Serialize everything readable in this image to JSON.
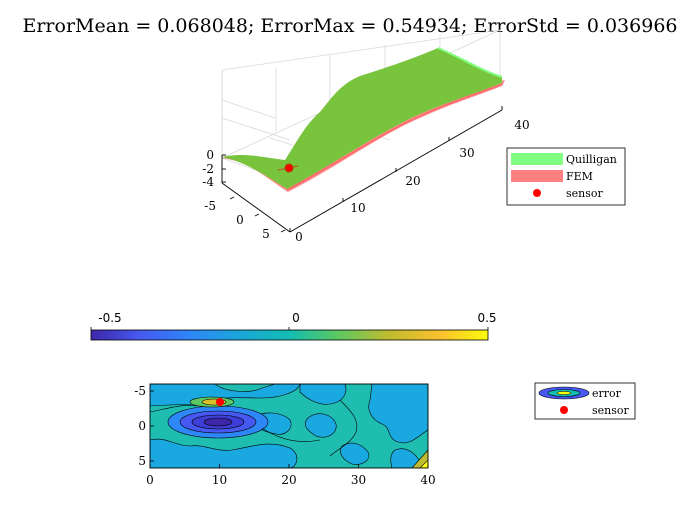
{
  "title": "ErrorMean = 0.068048; ErrorMax = 0.54934; ErrorStd = 0.036966",
  "chart_data": [
    {
      "type": "surface",
      "title": "",
      "xlabel": "",
      "ylabel": "",
      "zlabel": "",
      "x_ticks": [
        "0",
        "10",
        "20",
        "30",
        "40"
      ],
      "y_ticks": [
        "-5",
        "0",
        "5"
      ],
      "z_ticks": [
        "0",
        "-2",
        "-4"
      ],
      "xlim": [
        0,
        40
      ],
      "ylim": [
        -6,
        6
      ],
      "zlim": [
        -4,
        0
      ],
      "grid": true,
      "series": [
        {
          "name": "Quilligan",
          "color": "#80ff80"
        },
        {
          "name": "FEM",
          "color": "#ff8080"
        },
        {
          "name": "sensor",
          "color": "#ff0000",
          "marker": "circle",
          "points": [
            {
              "x": 10,
              "y": -3.5,
              "z": -1.8
            }
          ]
        }
      ],
      "legend": "right"
    },
    {
      "type": "heatmap",
      "title": "",
      "xlabel": "",
      "ylabel": "",
      "x_ticks": [
        "0",
        "10",
        "20",
        "30",
        "40"
      ],
      "y_ticks": [
        "-5",
        "0",
        "5"
      ],
      "xlim": [
        0,
        40
      ],
      "ylim": [
        -6,
        6
      ],
      "colorbar": {
        "ticks": [
          "-0.5",
          "0",
          "0.5"
        ],
        "limits": [
          -0.5,
          0.5
        ],
        "placement": "top"
      },
      "series": [
        {
          "name": "error"
        },
        {
          "name": "sensor",
          "color": "#ff0000",
          "marker": "circle",
          "points": [
            {
              "x": 10,
              "y": -3.5
            }
          ]
        }
      ],
      "legend": "right"
    }
  ]
}
